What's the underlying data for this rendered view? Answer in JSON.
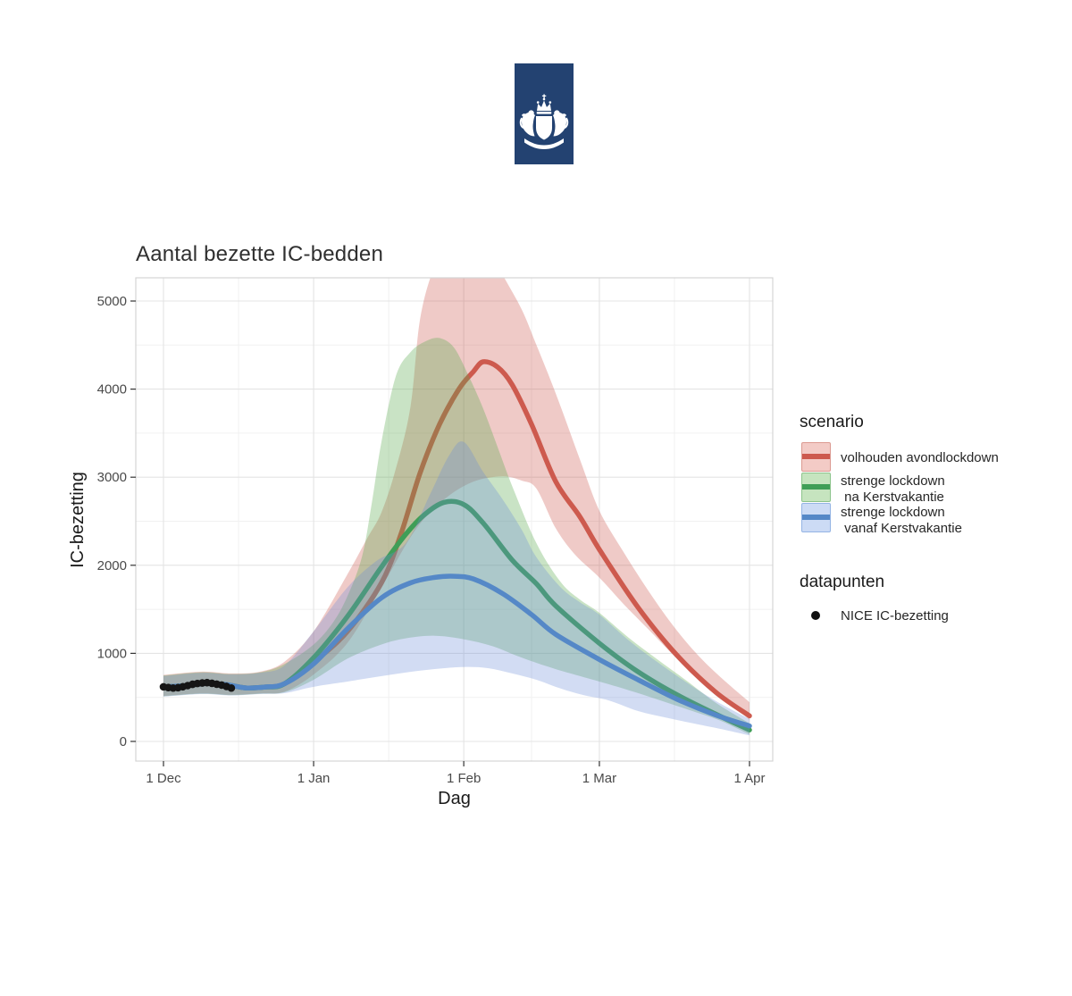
{
  "logo": {
    "name": "rijksoverheid-logo",
    "background": "#234271",
    "emblem": "crowned-shield-with-lions"
  },
  "chart_data": {
    "type": "line",
    "title": "Aantal bezette IC-bedden",
    "xlabel": "Dag",
    "ylabel": "IC-bezetting",
    "x_ticks": [
      {
        "day": 0,
        "label": "1 Dec"
      },
      {
        "day": 31,
        "label": "1 Jan"
      },
      {
        "day": 62,
        "label": "1 Feb"
      },
      {
        "day": 90,
        "label": "1 Mar"
      },
      {
        "day": 121,
        "label": "1 Apr"
      }
    ],
    "x_minor_days": [
      15.5,
      46.5,
      76,
      105.5
    ],
    "y_ticks": [
      {
        "value": 0,
        "label": "0"
      },
      {
        "value": 1000,
        "label": "1000"
      },
      {
        "value": 2000,
        "label": "2000"
      },
      {
        "value": 3000,
        "label": "3000"
      },
      {
        "value": 4000,
        "label": "4000"
      },
      {
        "value": 5000,
        "label": "5000"
      }
    ],
    "y_minor": [
      500,
      1500,
      2500,
      3500,
      4500
    ],
    "ylim": [
      -225,
      5265
    ],
    "xlim_days": [
      -5.7,
      125.8
    ],
    "grid": true,
    "legend_position": "right",
    "series": [
      {
        "name": "volhouden avondlockdown",
        "line_color": "#cd5a4e",
        "band_color": "rgba(205,90,80,0.32)",
        "line": [
          [
            0,
            618
          ],
          [
            5,
            635
          ],
          [
            9,
            658
          ],
          [
            13,
            645
          ],
          [
            17,
            608
          ],
          [
            21,
            618
          ],
          [
            25,
            655
          ],
          [
            31,
            900
          ],
          [
            38,
            1250
          ],
          [
            45,
            1800
          ],
          [
            49,
            2350
          ],
          [
            53,
            3050
          ],
          [
            57,
            3600
          ],
          [
            61,
            4000
          ],
          [
            64,
            4200
          ],
          [
            66,
            4310
          ],
          [
            69,
            4250
          ],
          [
            72,
            4050
          ],
          [
            76,
            3600
          ],
          [
            81,
            2950
          ],
          [
            86,
            2550
          ],
          [
            90,
            2180
          ],
          [
            98,
            1520
          ],
          [
            106,
            980
          ],
          [
            114,
            560
          ],
          [
            121,
            290
          ]
        ],
        "band_upper": [
          [
            0,
            755
          ],
          [
            8,
            792
          ],
          [
            14,
            772
          ],
          [
            20,
            792
          ],
          [
            25,
            905
          ],
          [
            31,
            1250
          ],
          [
            38,
            1900
          ],
          [
            42,
            2300
          ],
          [
            45,
            2600
          ],
          [
            48,
            3100
          ],
          [
            51,
            3800
          ],
          [
            53,
            4800
          ],
          [
            56,
            5400
          ],
          [
            60,
            5800
          ],
          [
            66,
            5700
          ],
          [
            70,
            5300
          ],
          [
            74,
            4900
          ],
          [
            77,
            4500
          ],
          [
            81,
            3950
          ],
          [
            86,
            3200
          ],
          [
            90,
            2620
          ],
          [
            95,
            2150
          ],
          [
            100,
            1720
          ],
          [
            105,
            1330
          ],
          [
            110,
            1000
          ],
          [
            115,
            730
          ],
          [
            121,
            445
          ]
        ],
        "band_lower": [
          [
            0,
            515
          ],
          [
            8,
            545
          ],
          [
            14,
            528
          ],
          [
            20,
            545
          ],
          [
            25,
            565
          ],
          [
            31,
            760
          ],
          [
            38,
            1120
          ],
          [
            45,
            1750
          ],
          [
            52,
            2400
          ],
          [
            58,
            2750
          ],
          [
            64,
            2950
          ],
          [
            70,
            3010
          ],
          [
            74,
            2960
          ],
          [
            77,
            2870
          ],
          [
            81,
            2420
          ],
          [
            85,
            2120
          ],
          [
            90,
            1860
          ],
          [
            95,
            1560
          ],
          [
            100,
            1280
          ],
          [
            106,
            940
          ],
          [
            112,
            640
          ],
          [
            117,
            430
          ],
          [
            121,
            245
          ]
        ]
      },
      {
        "name": "strenge lockdown na Kerstvakantie",
        "line_color": "#3f9e57",
        "band_color": "rgba(90,170,80,0.33)",
        "line": [
          [
            0,
            618
          ],
          [
            5,
            635
          ],
          [
            9,
            658
          ],
          [
            13,
            645
          ],
          [
            17,
            608
          ],
          [
            21,
            618
          ],
          [
            25,
            655
          ],
          [
            31,
            950
          ],
          [
            38,
            1420
          ],
          [
            45,
            1980
          ],
          [
            50,
            2350
          ],
          [
            54,
            2580
          ],
          [
            58,
            2715
          ],
          [
            62,
            2690
          ],
          [
            66,
            2480
          ],
          [
            72,
            2060
          ],
          [
            77,
            1790
          ],
          [
            81,
            1540
          ],
          [
            90,
            1115
          ],
          [
            98,
            790
          ],
          [
            106,
            530
          ],
          [
            114,
            310
          ],
          [
            121,
            130
          ]
        ],
        "band_upper": [
          [
            0,
            748
          ],
          [
            8,
            786
          ],
          [
            14,
            766
          ],
          [
            20,
            786
          ],
          [
            25,
            880
          ],
          [
            31,
            1100
          ],
          [
            35,
            1350
          ],
          [
            38,
            1650
          ],
          [
            41,
            2100
          ],
          [
            43,
            2700
          ],
          [
            45,
            3400
          ],
          [
            48,
            4150
          ],
          [
            51,
            4420
          ],
          [
            54,
            4540
          ],
          [
            57,
            4580
          ],
          [
            60,
            4470
          ],
          [
            63,
            4150
          ],
          [
            66,
            3780
          ],
          [
            69,
            3340
          ],
          [
            72,
            2900
          ],
          [
            77,
            2250
          ],
          [
            82,
            1810
          ],
          [
            86,
            1610
          ],
          [
            90,
            1460
          ],
          [
            96,
            1180
          ],
          [
            102,
            930
          ],
          [
            108,
            690
          ],
          [
            114,
            440
          ],
          [
            121,
            205
          ]
        ],
        "band_lower": [
          [
            0,
            512
          ],
          [
            8,
            542
          ],
          [
            14,
            525
          ],
          [
            20,
            542
          ],
          [
            25,
            558
          ],
          [
            31,
            700
          ],
          [
            38,
            940
          ],
          [
            45,
            1100
          ],
          [
            50,
            1170
          ],
          [
            56,
            1200
          ],
          [
            62,
            1160
          ],
          [
            68,
            1080
          ],
          [
            74,
            950
          ],
          [
            81,
            820
          ],
          [
            90,
            680
          ],
          [
            97,
            565
          ],
          [
            104,
            440
          ],
          [
            110,
            330
          ],
          [
            115,
            235
          ],
          [
            121,
            78
          ]
        ]
      },
      {
        "name": "strenge lockdown vanaf Kerstvakantie",
        "line_color": "#5588c7",
        "band_color": "rgba(105,140,215,0.30)",
        "line": [
          [
            0,
            618
          ],
          [
            5,
            635
          ],
          [
            9,
            658
          ],
          [
            13,
            645
          ],
          [
            17,
            608
          ],
          [
            21,
            618
          ],
          [
            25,
            655
          ],
          [
            31,
            880
          ],
          [
            38,
            1280
          ],
          [
            45,
            1630
          ],
          [
            51,
            1800
          ],
          [
            56,
            1862
          ],
          [
            60,
            1875
          ],
          [
            64,
            1845
          ],
          [
            70,
            1680
          ],
          [
            76,
            1440
          ],
          [
            81,
            1215
          ],
          [
            90,
            930
          ],
          [
            98,
            700
          ],
          [
            106,
            480
          ],
          [
            114,
            300
          ],
          [
            121,
            175
          ]
        ],
        "band_upper": [
          [
            0,
            742
          ],
          [
            8,
            780
          ],
          [
            14,
            762
          ],
          [
            20,
            780
          ],
          [
            25,
            862
          ],
          [
            31,
            1250
          ],
          [
            38,
            1750
          ],
          [
            44,
            2050
          ],
          [
            50,
            2250
          ],
          [
            55,
            2800
          ],
          [
            59,
            3250
          ],
          [
            62,
            3400
          ],
          [
            66,
            3060
          ],
          [
            70,
            2750
          ],
          [
            74,
            2400
          ],
          [
            77,
            2090
          ],
          [
            82,
            1750
          ],
          [
            86,
            1580
          ],
          [
            90,
            1440
          ],
          [
            96,
            1150
          ],
          [
            102,
            900
          ],
          [
            108,
            670
          ],
          [
            114,
            460
          ],
          [
            121,
            255
          ]
        ],
        "band_lower": [
          [
            0,
            508
          ],
          [
            8,
            538
          ],
          [
            14,
            522
          ],
          [
            20,
            538
          ],
          [
            25,
            548
          ],
          [
            31,
            620
          ],
          [
            38,
            680
          ],
          [
            44,
            732
          ],
          [
            50,
            782
          ],
          [
            56,
            822
          ],
          [
            62,
            845
          ],
          [
            67,
            832
          ],
          [
            72,
            772
          ],
          [
            77,
            700
          ],
          [
            82,
            600
          ],
          [
            87,
            522
          ],
          [
            92,
            465
          ],
          [
            98,
            345
          ],
          [
            104,
            268
          ],
          [
            110,
            198
          ],
          [
            115,
            142
          ],
          [
            121,
            68
          ]
        ]
      }
    ],
    "points": {
      "name": "NICE IC-bezetting",
      "color": "#151515",
      "data": [
        [
          0,
          620
        ],
        [
          1,
          612
        ],
        [
          2,
          606
        ],
        [
          3,
          610
        ],
        [
          4,
          621
        ],
        [
          5,
          634
        ],
        [
          6,
          648
        ],
        [
          7,
          658
        ],
        [
          8,
          664
        ],
        [
          9,
          667
        ],
        [
          10,
          660
        ],
        [
          11,
          650
        ],
        [
          12,
          640
        ],
        [
          13,
          624
        ],
        [
          14,
          606
        ]
      ]
    }
  },
  "legend": {
    "scenario": {
      "title": "scenario",
      "entries": [
        {
          "label_lines": [
            "volhouden avondlockdown"
          ],
          "line_color": "#cd5a4e",
          "fill_color": "#f3cbc6",
          "border_color": "#dc9a91"
        },
        {
          "label_lines": [
            "strenge lockdown",
            " na Kerstvakantie"
          ],
          "line_color": "#3f9e57",
          "fill_color": "#c6e4bf",
          "border_color": "#8cc48b"
        },
        {
          "label_lines": [
            "strenge lockdown",
            " vanaf Kerstvakantie"
          ],
          "line_color": "#5588c7",
          "fill_color": "#ccdbf5",
          "border_color": "#94b4e4"
        }
      ]
    },
    "datapunten": {
      "title": "datapunten",
      "entries": [
        {
          "label": "NICE IC-bezetting",
          "marker_color": "#111111"
        }
      ]
    }
  }
}
